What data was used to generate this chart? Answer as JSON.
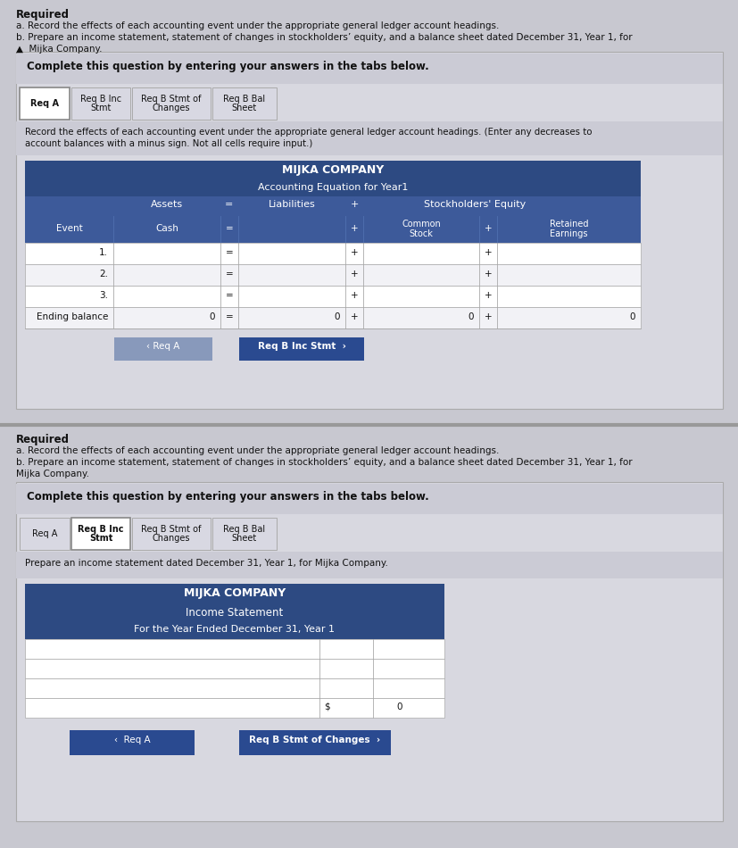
{
  "bg_color": "#c8c8d0",
  "outer_bg": "#c8c8d0",
  "inner_bg": "#d8d8e0",
  "white": "#ffffff",
  "dark_blue": "#2d4a82",
  "med_blue": "#3d5a9a",
  "light_blue": "#c5cfe8",
  "btn_blue": "#2a4a90",
  "btn_gray": "#8899bb",
  "row_white": "#ffffff",
  "row_alt": "#f2f2f6",
  "border_gray": "#aaaaaa",
  "text_dark": "#111111",
  "tab_active": "#ffffff",
  "tab_inactive": "#d8d8e2",
  "complete_bar": "#cbcbd5",
  "inst_bar": "#cbcbd5",
  "panel1": {
    "required_text": "Required",
    "line_a": "a. Record the effects of each accounting event under the appropriate general ledger account headings.",
    "line_b": "b. Prepare an income statement, statement of changes in stockholders’ equity, and a balance sheet dated December 31, Year 1, for",
    "line_c": "▲  Mijka Company.",
    "complete_text": "Complete this question by entering your answers in the tabs below.",
    "tabs": [
      "Req A",
      "Req B Inc\nStmt",
      "Req B Stmt of\nChanges",
      "Req B Bal\nSheet"
    ],
    "active_tab": 0,
    "instruction": "Record the effects of each accounting event under the appropriate general ledger account headings. (Enter any decreases to\naccount balances with a minus sign. Not all cells require input.)",
    "table_title": "MIJKA COMPANY",
    "table_subtitle": "Accounting Equation for Year1",
    "events": [
      "1.",
      "2.",
      "3.",
      "Ending balance"
    ],
    "nav_left": "‹ Req A",
    "nav_right": "Req B Inc Stmt  ›"
  },
  "panel2": {
    "required_text": "Required",
    "line_a": "a. Record the effects of each accounting event under the appropriate general ledger account headings.",
    "line_b": "b. Prepare an income statement, statement of changes in stockholders’ equity, and a balance sheet dated December 31, Year 1, for",
    "line_c": "Mijka Company.",
    "complete_text": "Complete this question by entering your answers in the tabs below.",
    "tabs": [
      "Req A",
      "Req B Inc\nStmt",
      "Req B Stmt of\nChanges",
      "Req B Bal\nSheet"
    ],
    "active_tab": 1,
    "instruction": "Prepare an income statement dated December 31, Year 1, for Mijka Company.",
    "table_title": "MIJKA COMPANY",
    "table_subtitle": "Income Statement",
    "table_subtitle2": "For the Year Ended December 31, Year 1",
    "dollar_sign": "$",
    "zero_val": "0",
    "nav_left": "‹  Req A",
    "nav_right": "Req B Stmt of Changes  ›"
  }
}
